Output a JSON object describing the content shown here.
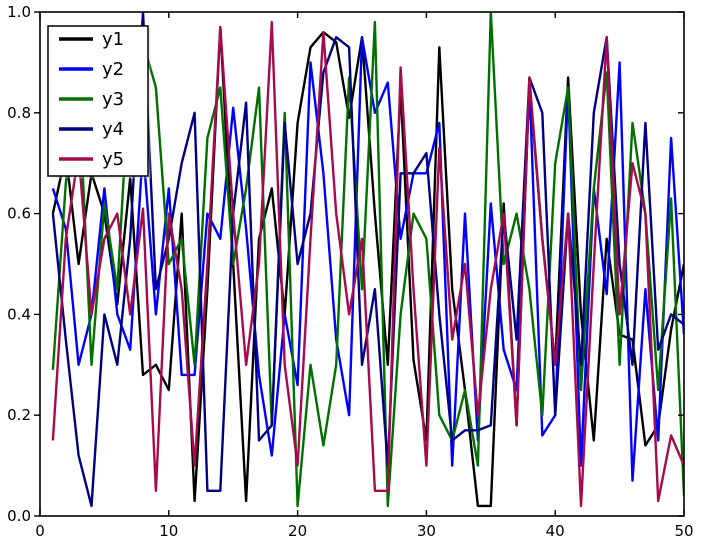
{
  "figure": {
    "background": "#ffffff",
    "axes_color": "#000000",
    "tick_label_color": "#000000"
  },
  "chart_data": {
    "type": "line",
    "title": "",
    "xlabel": "",
    "ylabel": "",
    "xlim": [
      0,
      50
    ],
    "ylim": [
      0.0,
      1.0
    ],
    "xticks": [
      "0",
      "10",
      "20",
      "30",
      "40",
      "50"
    ],
    "xtick_values": [
      0,
      10,
      20,
      30,
      40,
      50
    ],
    "yticks": [
      "0.0",
      "0.2",
      "0.4",
      "0.6",
      "0.8",
      "1.0"
    ],
    "ytick_values": [
      0.0,
      0.2,
      0.4,
      0.6,
      0.8,
      1.0
    ],
    "grid": false,
    "legend_position": "upper left",
    "x": [
      1,
      2,
      3,
      4,
      5,
      6,
      7,
      8,
      9,
      10,
      11,
      12,
      13,
      14,
      15,
      16,
      17,
      18,
      19,
      20,
      21,
      22,
      23,
      24,
      25,
      26,
      27,
      28,
      29,
      30,
      31,
      32,
      33,
      34,
      35,
      36,
      37,
      38,
      39,
      40,
      41,
      42,
      43,
      44,
      45,
      46,
      47,
      48,
      49,
      50
    ],
    "series": [
      {
        "name": "y1",
        "color": "#000000",
        "values": [
          0.6,
          0.72,
          0.5,
          0.68,
          0.6,
          0.42,
          0.67,
          0.28,
          0.3,
          0.25,
          0.6,
          0.03,
          0.45,
          0.97,
          0.5,
          0.03,
          0.55,
          0.65,
          0.4,
          0.78,
          0.93,
          0.96,
          0.94,
          0.79,
          0.95,
          0.6,
          0.3,
          0.85,
          0.31,
          0.15,
          0.93,
          0.45,
          0.25,
          0.02,
          0.02,
          0.62,
          0.18,
          0.86,
          0.55,
          0.3,
          0.87,
          0.4,
          0.15,
          0.55,
          0.36,
          0.35,
          0.14,
          0.18,
          0.37,
          0.5
        ]
      },
      {
        "name": "y2",
        "color": "#0000ff",
        "values": [
          0.65,
          0.57,
          0.3,
          0.4,
          0.65,
          0.4,
          0.33,
          0.73,
          0.4,
          0.65,
          0.28,
          0.28,
          0.6,
          0.55,
          0.81,
          0.57,
          0.28,
          0.12,
          0.4,
          0.26,
          0.9,
          0.68,
          0.35,
          0.2,
          0.95,
          0.8,
          0.86,
          0.55,
          0.68,
          0.68,
          0.78,
          0.1,
          0.6,
          0.15,
          0.62,
          0.33,
          0.25,
          0.86,
          0.16,
          0.2,
          0.85,
          0.1,
          0.65,
          0.44,
          0.9,
          0.07,
          0.45,
          0.15,
          0.75,
          0.36
        ]
      },
      {
        "name": "y3",
        "color": "#007000",
        "values": [
          0.29,
          0.66,
          0.86,
          0.3,
          0.62,
          0.45,
          0.9,
          0.94,
          0.85,
          0.5,
          0.55,
          0.3,
          0.75,
          0.85,
          0.5,
          0.65,
          0.85,
          0.18,
          0.8,
          0.02,
          0.3,
          0.14,
          0.3,
          0.87,
          0.45,
          0.98,
          0.02,
          0.4,
          0.6,
          0.55,
          0.2,
          0.15,
          0.25,
          0.1,
          1.0,
          0.5,
          0.6,
          0.45,
          0.2,
          0.7,
          0.85,
          0.25,
          0.65,
          0.88,
          0.3,
          0.78,
          0.6,
          0.25,
          0.63,
          0.04
        ]
      },
      {
        "name": "y4",
        "color": "#000082",
        "values": [
          0.6,
          0.35,
          0.12,
          0.02,
          0.4,
          0.3,
          0.55,
          1.0,
          0.45,
          0.55,
          0.7,
          0.8,
          0.05,
          0.05,
          0.6,
          0.82,
          0.15,
          0.18,
          0.78,
          0.5,
          0.6,
          0.88,
          0.95,
          0.93,
          0.3,
          0.45,
          0.1,
          0.68,
          0.68,
          0.72,
          0.4,
          0.15,
          0.17,
          0.17,
          0.18,
          0.6,
          0.35,
          0.87,
          0.8,
          0.2,
          0.6,
          0.3,
          0.8,
          0.95,
          0.5,
          0.3,
          0.78,
          0.33,
          0.4,
          0.38
        ]
      },
      {
        "name": "y5",
        "color": "#a60b4d",
        "values": [
          0.15,
          0.55,
          0.72,
          0.4,
          0.55,
          0.6,
          0.4,
          0.61,
          0.05,
          0.6,
          0.45,
          0.1,
          0.5,
          0.97,
          0.6,
          0.3,
          0.5,
          0.98,
          0.3,
          0.1,
          0.55,
          0.96,
          0.6,
          0.4,
          0.55,
          0.05,
          0.05,
          0.89,
          0.45,
          0.1,
          0.73,
          0.35,
          0.5,
          0.2,
          0.45,
          0.6,
          0.18,
          0.87,
          0.55,
          0.3,
          0.6,
          0.02,
          0.5,
          0.95,
          0.4,
          0.7,
          0.6,
          0.03,
          0.16,
          0.1
        ]
      }
    ]
  }
}
